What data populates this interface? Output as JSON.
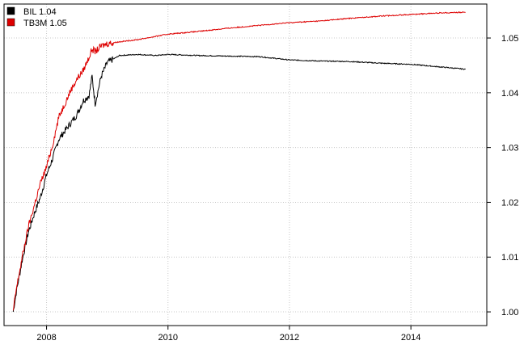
{
  "chart_data": {
    "type": "line",
    "title": "",
    "xlabel": "",
    "ylabel": "",
    "x_ticks": [
      2008,
      2010,
      2012,
      2014
    ],
    "y_ticks": [
      1.0,
      1.01,
      1.02,
      1.03,
      1.04,
      1.05
    ],
    "y_tick_labels": [
      "1.00",
      "1.01",
      "1.02",
      "1.03",
      "1.04",
      "1.05"
    ],
    "xlim": [
      2007.3,
      2015.25
    ],
    "ylim": [
      0.9975,
      1.0562
    ],
    "grid": true,
    "legend_position": "top-left",
    "series": [
      {
        "name": "BIL 1.04",
        "color": "#000000",
        "x": [
          2007.45,
          2007.5,
          2007.6,
          2007.7,
          2007.8,
          2007.9,
          2008.0,
          2008.1,
          2008.2,
          2008.3,
          2008.4,
          2008.5,
          2008.6,
          2008.7,
          2008.75,
          2008.8,
          2008.9,
          2009.0,
          2009.2,
          2009.5,
          2009.8,
          2010.0,
          2010.5,
          2011.0,
          2011.5,
          2012.0,
          2012.5,
          2013.0,
          2013.5,
          2014.0,
          2014.5,
          2014.9
        ],
        "y": [
          1.0,
          1.0035,
          1.0095,
          1.0145,
          1.018,
          1.021,
          1.025,
          1.028,
          1.0315,
          1.033,
          1.0345,
          1.036,
          1.0385,
          1.0395,
          1.043,
          1.038,
          1.043,
          1.0455,
          1.0468,
          1.047,
          1.0468,
          1.047,
          1.0468,
          1.0467,
          1.0466,
          1.046,
          1.0458,
          1.0457,
          1.0454,
          1.0452,
          1.0447,
          1.0443
        ]
      },
      {
        "name": "TB3M 1.05",
        "color": "#dd0000",
        "x": [
          2007.45,
          2007.5,
          2007.6,
          2007.7,
          2007.8,
          2007.9,
          2008.0,
          2008.1,
          2008.2,
          2008.3,
          2008.4,
          2008.5,
          2008.6,
          2008.7,
          2008.75,
          2008.8,
          2008.9,
          2009.0,
          2009.2,
          2009.5,
          2009.8,
          2010.0,
          2010.5,
          2011.0,
          2011.5,
          2012.0,
          2012.5,
          2013.0,
          2013.5,
          2014.0,
          2014.5,
          2014.9
        ],
        "y": [
          1.0,
          1.004,
          1.01,
          1.0155,
          1.0195,
          1.0235,
          1.0265,
          1.0305,
          1.0355,
          1.038,
          1.0405,
          1.0425,
          1.044,
          1.0465,
          1.048,
          1.0475,
          1.0485,
          1.049,
          1.0493,
          1.0497,
          1.0503,
          1.0507,
          1.0512,
          1.0518,
          1.0523,
          1.0528,
          1.0531,
          1.0536,
          1.054,
          1.0543,
          1.0546,
          1.0547
        ]
      }
    ]
  }
}
